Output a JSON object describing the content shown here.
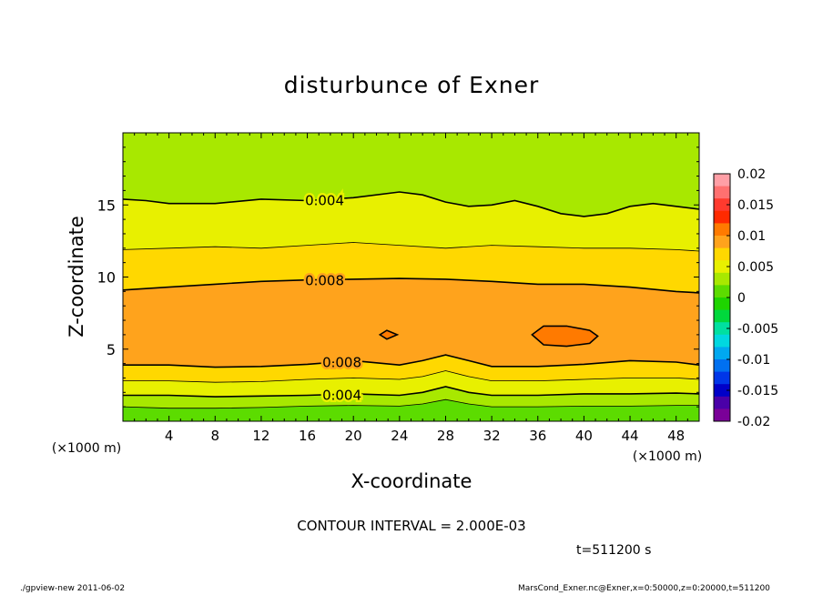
{
  "chart_data": {
    "type": "heatmap",
    "title": "disturbunce of Exner",
    "xlabel": "X-coordinate",
    "ylabel": "Z-coordinate",
    "x_unit": "(×1000 m)",
    "z_unit": "(×1000 m)",
    "xlim": [
      0,
      50
    ],
    "ylim": [
      0,
      20
    ],
    "x_ticks": [
      4,
      8,
      12,
      16,
      20,
      24,
      28,
      32,
      36,
      40,
      44,
      48
    ],
    "y_ticks": [
      5,
      10,
      15
    ],
    "contour_interval_text": "CONTOUR INTERVAL = 2.000E-03",
    "time_text": "t=511200 s",
    "contours": [
      {
        "level": 0.002,
        "label": "",
        "x": [
          0,
          4,
          8,
          12,
          16,
          20,
          24,
          26,
          28,
          30,
          32,
          36,
          40,
          44,
          48,
          50
        ],
        "y": [
          1.0,
          0.9,
          0.9,
          0.95,
          1.05,
          1.1,
          1.05,
          1.2,
          1.5,
          1.2,
          1.0,
          1.0,
          1.05,
          1.05,
          1.1,
          1.1
        ]
      },
      {
        "level": 0.004,
        "label": "0.004",
        "x": [
          0,
          4,
          8,
          12,
          16,
          20,
          24,
          26,
          28,
          30,
          32,
          36,
          40,
          44,
          48,
          50
        ],
        "y": [
          1.8,
          1.8,
          1.7,
          1.75,
          1.8,
          1.9,
          1.8,
          2.0,
          2.4,
          2.0,
          1.8,
          1.8,
          1.9,
          1.9,
          1.95,
          1.9
        ]
      },
      {
        "level": 0.006,
        "label": "",
        "x": [
          0,
          4,
          8,
          12,
          16,
          20,
          24,
          26,
          28,
          30,
          32,
          36,
          40,
          44,
          48,
          50
        ],
        "y": [
          2.8,
          2.8,
          2.7,
          2.75,
          2.9,
          3.0,
          2.9,
          3.1,
          3.5,
          3.1,
          2.8,
          2.8,
          2.9,
          3.0,
          3.0,
          2.9
        ]
      },
      {
        "level": 0.008,
        "label": "0.008",
        "x": [
          0,
          4,
          8,
          12,
          16,
          20,
          24,
          26,
          28,
          30,
          32,
          36,
          40,
          44,
          48,
          50
        ],
        "y": [
          3.9,
          3.9,
          3.75,
          3.8,
          3.95,
          4.2,
          3.9,
          4.2,
          4.6,
          4.2,
          3.8,
          3.8,
          3.95,
          4.2,
          4.1,
          3.9
        ]
      },
      {
        "level": 0.008,
        "label": "0.008",
        "x": [
          0,
          4,
          8,
          12,
          16,
          20,
          24,
          28,
          32,
          36,
          40,
          44,
          48,
          50
        ],
        "y": [
          9.1,
          9.3,
          9.5,
          9.7,
          9.8,
          9.85,
          9.9,
          9.85,
          9.7,
          9.5,
          9.5,
          9.3,
          9.0,
          8.9
        ]
      },
      {
        "level": 0.006,
        "label": "",
        "x": [
          0,
          4,
          8,
          12,
          16,
          20,
          24,
          28,
          32,
          36,
          40,
          44,
          48,
          50
        ],
        "y": [
          11.9,
          12.0,
          12.1,
          12.0,
          12.2,
          12.4,
          12.2,
          12.0,
          12.2,
          12.1,
          12.0,
          12.0,
          11.9,
          11.8
        ]
      },
      {
        "level": 0.004,
        "label": "0.004",
        "x": [
          0,
          2,
          4,
          8,
          12,
          16,
          20,
          24,
          26,
          28,
          30,
          32,
          34,
          36,
          38,
          40,
          42,
          44,
          46,
          48,
          50
        ],
        "y": [
          15.4,
          15.3,
          15.1,
          15.1,
          15.4,
          15.3,
          15.5,
          15.9,
          15.7,
          15.2,
          14.9,
          15.0,
          15.3,
          14.9,
          14.4,
          14.2,
          14.4,
          14.9,
          15.1,
          14.9,
          14.7
        ]
      },
      {
        "level": 0.01,
        "label": "",
        "closed": true,
        "x": [
          22.3,
          22.9,
          23.8,
          22.9,
          22.3
        ],
        "y": [
          6.0,
          6.3,
          6.0,
          5.7,
          6.0
        ]
      },
      {
        "level": 0.01,
        "label": "",
        "closed": true,
        "x": [
          35.5,
          36.5,
          38.5,
          40.5,
          41.2,
          40.5,
          38.5,
          36.5,
          35.5
        ],
        "y": [
          6.0,
          6.6,
          6.6,
          6.3,
          5.9,
          5.4,
          5.2,
          5.3,
          6.0
        ]
      }
    ],
    "colorbar": {
      "ticks": [
        "0.02",
        "0.015",
        "0.01",
        "0.005",
        "0",
        "-0.005",
        "-0.01",
        "-0.015",
        "-0.02"
      ],
      "range": [
        -0.02,
        0.02
      ],
      "colors": [
        "#ff9fa6",
        "#ff7070",
        "#ff3a2e",
        "#ff2a00",
        "#ff7a00",
        "#ffa31c",
        "#ffd800",
        "#e8f000",
        "#a8e800",
        "#5cdc00",
        "#1ed400",
        "#00d83c",
        "#00e0a0",
        "#00d8e0",
        "#00a8f0",
        "#0070f0",
        "#0036e8",
        "#0000c8",
        "#4a00a8",
        "#7a0098"
      ]
    }
  },
  "footer": {
    "left": "./gpview-new   2011-06-02",
    "right": "MarsCond_Exner.nc@Exner,x=0:50000,z=0:20000,t=511200"
  }
}
